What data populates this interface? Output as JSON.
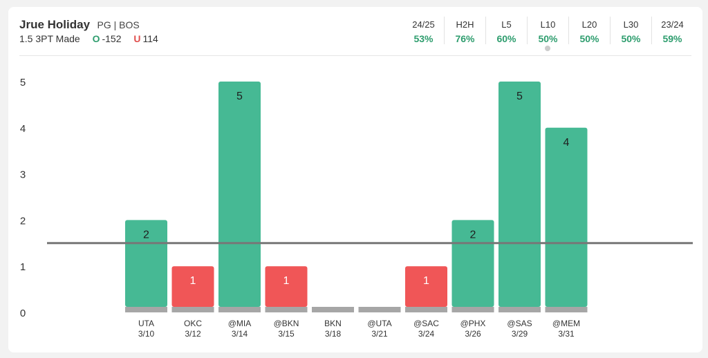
{
  "player": {
    "name": "Jrue Holiday",
    "meta": "PG | BOS",
    "prop": "1.5 3PT Made",
    "over_label": "O",
    "over_odds": "-152",
    "under_label": "U",
    "under_odds": "114"
  },
  "stats": [
    {
      "label": "24/25",
      "value": "53%"
    },
    {
      "label": "H2H",
      "value": "76%"
    },
    {
      "label": "L5",
      "value": "60%"
    },
    {
      "label": "L10",
      "value": "50%"
    },
    {
      "label": "L20",
      "value": "50%"
    },
    {
      "label": "L30",
      "value": "50%"
    },
    {
      "label": "23/24",
      "value": "59%"
    }
  ],
  "chart_data": {
    "type": "bar",
    "line": 1.5,
    "ylim": [
      0,
      5
    ],
    "yticks": [
      0,
      1,
      2,
      3,
      4,
      5
    ],
    "categories": [
      "UTA",
      "OKC",
      "@MIA",
      "@BKN",
      "BKN",
      "@UTA",
      "@SAC",
      "@PHX",
      "@SAS",
      "@MEM"
    ],
    "dates": [
      "3/10",
      "3/12",
      "3/14",
      "3/15",
      "3/18",
      "3/21",
      "3/24",
      "3/26",
      "3/29",
      "3/31"
    ],
    "values": [
      2,
      1,
      5,
      1,
      0,
      0,
      1,
      2,
      5,
      4
    ],
    "colors": {
      "over": "#46b994",
      "under": "#f05657",
      "base": "#a6a6a6",
      "line": "#777777"
    }
  }
}
